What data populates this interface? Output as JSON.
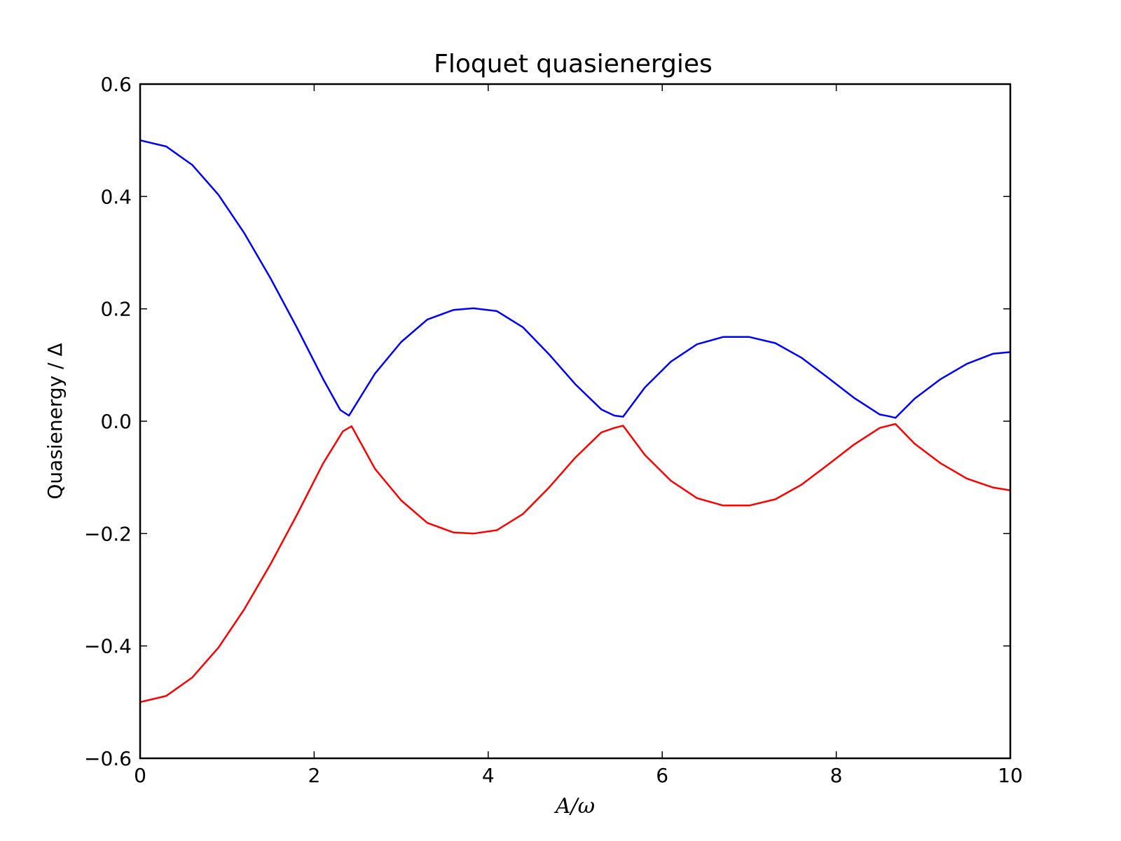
{
  "chart_data": {
    "type": "line",
    "title": "Floquet quasienergies",
    "xlabel": "A/ω",
    "ylabel": "Quasienergy / Δ",
    "xlim": [
      0,
      10
    ],
    "ylim": [
      -0.6,
      0.6
    ],
    "xticks": [
      0,
      2,
      4,
      6,
      8,
      10
    ],
    "xtick_labels": [
      "0",
      "2",
      "4",
      "6",
      "8",
      "10"
    ],
    "yticks": [
      -0.6,
      -0.4,
      -0.2,
      0.0,
      0.2,
      0.4,
      0.6
    ],
    "ytick_labels": [
      "−0.6",
      "−0.4",
      "−0.2",
      "0.0",
      "0.2",
      "0.4",
      "0.6"
    ],
    "grid": false,
    "legend": "none",
    "series": [
      {
        "color": "#0000ff",
        "x": [
          0,
          0.3,
          0.6,
          0.9,
          1.2,
          1.5,
          1.8,
          2.1,
          2.3,
          2.4,
          2.7,
          3.0,
          3.3,
          3.6,
          3.83,
          4.1,
          4.4,
          4.7,
          5.0,
          5.3,
          5.45,
          5.55,
          5.8,
          6.1,
          6.4,
          6.7,
          7.0,
          7.3,
          7.6,
          7.9,
          8.2,
          8.5,
          8.6,
          8.68,
          8.9,
          9.2,
          9.5,
          9.8,
          10.0
        ],
        "y": [
          0.5,
          0.489,
          0.456,
          0.403,
          0.334,
          0.254,
          0.167,
          0.076,
          0.02,
          0.01,
          0.085,
          0.141,
          0.181,
          0.198,
          0.201,
          0.196,
          0.167,
          0.119,
          0.066,
          0.021,
          0.01,
          0.008,
          0.06,
          0.106,
          0.137,
          0.15,
          0.15,
          0.139,
          0.113,
          0.078,
          0.042,
          0.012,
          0.009,
          0.006,
          0.04,
          0.075,
          0.102,
          0.12,
          0.123
        ]
      },
      {
        "color": "#ff0000",
        "x": [
          0,
          0.3,
          0.6,
          0.9,
          1.2,
          1.5,
          1.8,
          2.1,
          2.33,
          2.43,
          2.7,
          3.0,
          3.3,
          3.6,
          3.83,
          4.1,
          4.4,
          4.7,
          5.0,
          5.3,
          5.45,
          5.55,
          5.8,
          6.1,
          6.4,
          6.7,
          7.0,
          7.3,
          7.6,
          7.9,
          8.2,
          8.5,
          8.6,
          8.68,
          8.9,
          9.2,
          9.5,
          9.8,
          10.0
        ],
        "y": [
          -0.5,
          -0.489,
          -0.456,
          -0.403,
          -0.334,
          -0.254,
          -0.167,
          -0.076,
          -0.018,
          -0.009,
          -0.085,
          -0.141,
          -0.181,
          -0.198,
          -0.2,
          -0.194,
          -0.165,
          -0.118,
          -0.065,
          -0.02,
          -0.012,
          -0.008,
          -0.06,
          -0.106,
          -0.137,
          -0.15,
          -0.15,
          -0.139,
          -0.113,
          -0.078,
          -0.042,
          -0.012,
          -0.008,
          -0.005,
          -0.04,
          -0.075,
          -0.102,
          -0.118,
          -0.123
        ]
      }
    ]
  }
}
